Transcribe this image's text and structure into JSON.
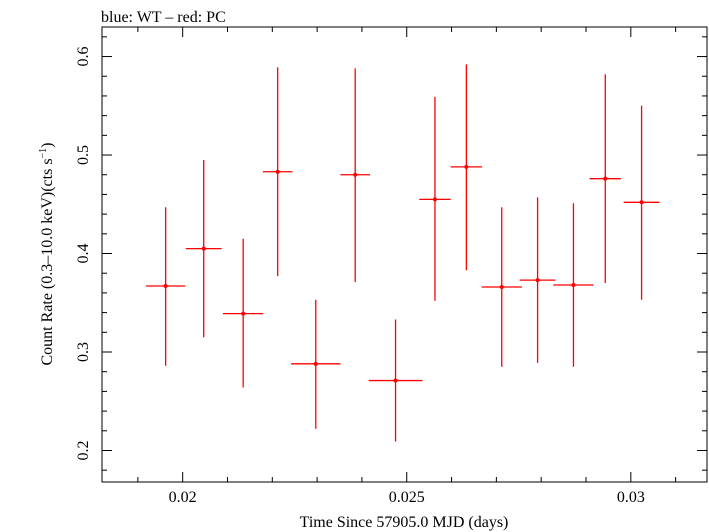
{
  "chart_data": {
    "type": "scatter",
    "title": "blue: WT – red: PC",
    "xlabel": "Time Since 57905.0 MJD (days)",
    "ylabel_main": "Count Rate (0.3–10.0 keV)(cts s",
    "ylabel_sup": "−1",
    "ylabel_close": ")",
    "xlim": [
      0.0182,
      0.0317
    ],
    "ylim": [
      0.168,
      0.63
    ],
    "x_ticks": [
      0.02,
      0.025,
      0.03
    ],
    "x_tick_labels": [
      "0.02",
      "0.025",
      "0.03"
    ],
    "y_ticks": [
      0.2,
      0.3,
      0.4,
      0.5,
      0.6
    ],
    "y_tick_labels": [
      "0.2",
      "0.3",
      "0.4",
      "0.5",
      "0.6"
    ],
    "grid": false,
    "series": [
      {
        "color": "#ff0000",
        "points": [
          {
            "x": 0.01962,
            "xerr": 0.00044,
            "y": 0.367,
            "yerr_low": 0.081,
            "yerr_high": 0.08
          },
          {
            "x": 0.02047,
            "xerr": 0.0004,
            "y": 0.405,
            "yerr_low": 0.09,
            "yerr_high": 0.09
          },
          {
            "x": 0.02135,
            "xerr": 0.00045,
            "y": 0.339,
            "yerr_low": 0.075,
            "yerr_high": 0.076
          },
          {
            "x": 0.02212,
            "xerr": 0.00033,
            "y": 0.483,
            "yerr_low": 0.106,
            "yerr_high": 0.106
          },
          {
            "x": 0.02297,
            "xerr": 0.00055,
            "y": 0.288,
            "yerr_low": 0.066,
            "yerr_high": 0.065
          },
          {
            "x": 0.02385,
            "xerr": 0.00033,
            "y": 0.48,
            "yerr_low": 0.109,
            "yerr_high": 0.108
          },
          {
            "x": 0.02475,
            "xerr": 0.0006,
            "y": 0.271,
            "yerr_low": 0.062,
            "yerr_high": 0.062
          },
          {
            "x": 0.02563,
            "xerr": 0.00035,
            "y": 0.455,
            "yerr_low": 0.103,
            "yerr_high": 0.104
          },
          {
            "x": 0.02633,
            "xerr": 0.00035,
            "y": 0.488,
            "yerr_low": 0.105,
            "yerr_high": 0.104
          },
          {
            "x": 0.02712,
            "xerr": 0.00045,
            "y": 0.366,
            "yerr_low": 0.081,
            "yerr_high": 0.081
          },
          {
            "x": 0.02792,
            "xerr": 0.0004,
            "y": 0.373,
            "yerr_low": 0.084,
            "yerr_high": 0.084
          },
          {
            "x": 0.02872,
            "xerr": 0.00045,
            "y": 0.368,
            "yerr_low": 0.083,
            "yerr_high": 0.083
          },
          {
            "x": 0.02943,
            "xerr": 0.00035,
            "y": 0.476,
            "yerr_low": 0.106,
            "yerr_high": 0.106
          },
          {
            "x": 0.03024,
            "xerr": 0.0004,
            "y": 0.452,
            "yerr_low": 0.099,
            "yerr_high": 0.098
          }
        ]
      }
    ]
  }
}
